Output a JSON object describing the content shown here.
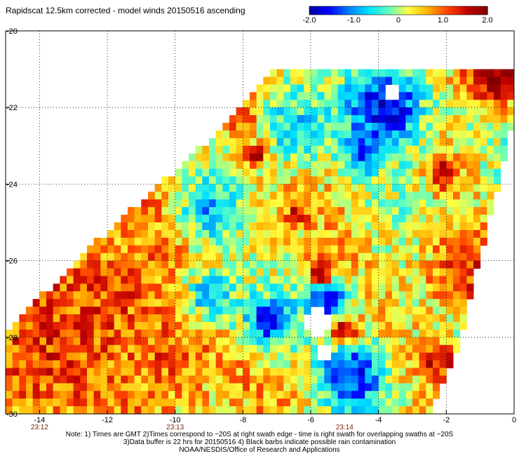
{
  "title": "Rapidscat 12.5km corrected - model winds 20150516 ascending",
  "colorbar": {
    "ticks": [
      "-2.0",
      "-1.0",
      "0",
      "1.0",
      "2.0"
    ],
    "tick_values": [
      -2.0,
      -1.0,
      0,
      1.0,
      2.0
    ],
    "range": [
      -2.0,
      2.0
    ],
    "colors": [
      "#0000a0",
      "#0000ff",
      "#0080ff",
      "#00e0ff",
      "#60ffc0",
      "#ffff40",
      "#ffb000",
      "#ff4000",
      "#c00000",
      "#800000"
    ]
  },
  "chart_data": {
    "type": "heatmap",
    "title": "Rapidscat 12.5km corrected - model winds 20150516 ascending",
    "xlabel": "",
    "ylabel": "",
    "xlim": [
      -15,
      0
    ],
    "ylim": [
      -30,
      -20
    ],
    "x_ticks": [
      "-14",
      "-12",
      "-10",
      "-8",
      "-6",
      "-4",
      "-2",
      "0"
    ],
    "y_ticks": [
      "-20",
      "-22",
      "-24",
      "-26",
      "-28",
      "-30"
    ],
    "x_tick_values": [
      -14,
      -12,
      -10,
      -8,
      -6,
      -4,
      -2,
      0
    ],
    "y_tick_values": [
      -20,
      -22,
      -24,
      -26,
      -28,
      -30
    ],
    "time_labels": [
      {
        "lon": -14,
        "text": "23:12"
      },
      {
        "lon": -10,
        "text": "23:13"
      },
      {
        "lon": -5,
        "text": "23:14"
      }
    ],
    "value_range": [
      -2.0,
      2.0
    ],
    "grid": true,
    "swath": {
      "lon_step": 0.2,
      "lat_step": 0.2,
      "left_edge": [
        [
          -7,
          -20.8
        ],
        [
          -8.6,
          -22.4
        ],
        [
          -12.6,
          -25.6
        ],
        [
          -15,
          -27.8
        ]
      ],
      "right_edge": [
        [
          0,
          -20
        ],
        [
          0,
          -22.2
        ],
        [
          -1.6,
          -28
        ],
        [
          -2.6,
          -30
        ]
      ]
    },
    "features": [
      {
        "lon": -3.8,
        "lat": -22.0,
        "radius": 1.2,
        "value": -1.8
      },
      {
        "lon": -4.5,
        "lat": -23.1,
        "radius": 0.6,
        "value": -1.3
      },
      {
        "lon": -5.5,
        "lat": -27.0,
        "radius": 0.7,
        "value": -1.7
      },
      {
        "lon": -4.8,
        "lat": -29.0,
        "radius": 1.0,
        "value": -1.5
      },
      {
        "lon": -7.3,
        "lat": -27.6,
        "radius": 0.8,
        "value": -1.4
      },
      {
        "lon": -9.0,
        "lat": -27.0,
        "radius": 0.9,
        "value": -1.1
      },
      {
        "lon": -9.0,
        "lat": -24.7,
        "radius": 1.0,
        "value": -0.9
      },
      {
        "lon": -6.5,
        "lat": -22.5,
        "radius": 1.2,
        "value": -0.6
      },
      {
        "lon": -0.6,
        "lat": -21.1,
        "radius": 1.1,
        "value": 2.0
      },
      {
        "lon": -1.5,
        "lat": -26.3,
        "radius": 1.3,
        "value": 1.3
      },
      {
        "lon": -2.2,
        "lat": -28.6,
        "radius": 0.6,
        "value": 1.6
      },
      {
        "lon": -12.0,
        "lat": -27.0,
        "radius": 1.8,
        "value": 1.1
      },
      {
        "lon": -14.0,
        "lat": -28.5,
        "radius": 1.5,
        "value": 1.2
      },
      {
        "lon": -10.3,
        "lat": -28.5,
        "radius": 1.4,
        "value": 1.0
      },
      {
        "lon": -5.7,
        "lat": -26.3,
        "radius": 0.4,
        "value": 1.9
      },
      {
        "lon": -5.0,
        "lat": -27.8,
        "radius": 0.4,
        "value": 1.9
      },
      {
        "lon": -7.6,
        "lat": -23.2,
        "radius": 0.3,
        "value": 1.8
      },
      {
        "lon": -6.4,
        "lat": -24.8,
        "radius": 0.3,
        "value": 1.8
      },
      {
        "lon": -8.1,
        "lat": -22.2,
        "radius": 0.5,
        "value": 1.2
      },
      {
        "lon": -2.1,
        "lat": -23.7,
        "radius": 0.5,
        "value": 1.5
      }
    ],
    "missing_areas": [
      {
        "lon": -5.8,
        "lat": -27.6,
        "radius": 0.35
      },
      {
        "lon": -5.6,
        "lat": -28.4,
        "radius": 0.3
      },
      {
        "lon": -3.6,
        "lat": -21.6,
        "radius": 0.15
      },
      {
        "lon": -4.2,
        "lat": -23.0,
        "radius": 0.12
      }
    ]
  },
  "notes": [
    "Note: 1) Times are GMT 2)Times correspond to ~20S at right swath edge - time is right swath for overlapping swaths at ~20S",
    "3)Data buffer is 22 hrs for 20150516 4) Black barbs indicate possible rain contamination",
    "NOAA/NESDIS/Office of Research and Applications"
  ]
}
